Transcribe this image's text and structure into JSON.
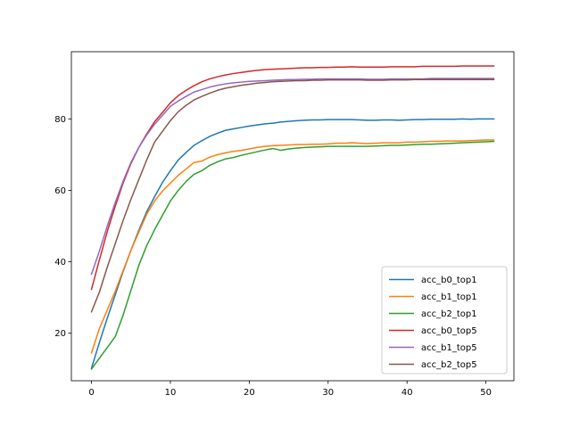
{
  "chart_data": {
    "type": "line",
    "title": "",
    "xlabel": "",
    "ylabel": "",
    "xlim": [
      -2.55,
      53.55
    ],
    "ylim": [
      6.7,
      98.8
    ],
    "xticks": [
      0,
      10,
      20,
      30,
      40,
      50
    ],
    "yticks": [
      20,
      40,
      60,
      80
    ],
    "grid": false,
    "legend_position": "lower-right",
    "x": [
      0,
      1,
      2,
      3,
      4,
      5,
      6,
      7,
      8,
      9,
      10,
      11,
      12,
      13,
      14,
      15,
      16,
      17,
      18,
      19,
      20,
      21,
      22,
      23,
      24,
      25,
      26,
      27,
      28,
      29,
      30,
      31,
      32,
      33,
      34,
      35,
      36,
      37,
      38,
      39,
      40,
      41,
      42,
      43,
      44,
      45,
      46,
      47,
      48,
      49,
      50,
      51
    ],
    "series": [
      {
        "name": "acc_b0_top1",
        "color": "#1f77b4",
        "values": [
          10.2,
          17.4,
          24.2,
          30.7,
          37.2,
          43.2,
          48.8,
          54.0,
          58.2,
          62.2,
          65.5,
          68.5,
          70.6,
          72.6,
          73.9,
          75.1,
          76.0,
          76.8,
          77.2,
          77.6,
          78.0,
          78.3,
          78.6,
          78.8,
          79.1,
          79.3,
          79.5,
          79.6,
          79.7,
          79.7,
          79.8,
          79.8,
          79.8,
          79.8,
          79.7,
          79.6,
          79.6,
          79.7,
          79.7,
          79.6,
          79.7,
          79.8,
          79.8,
          79.9,
          79.9,
          79.9,
          79.9,
          80.0,
          79.9,
          80.0,
          80.0,
          80.0
        ]
      },
      {
        "name": "acc_b1_top1",
        "color": "#ff7f0e",
        "values": [
          14.5,
          21.3,
          26.5,
          31.7,
          37.5,
          43.2,
          48.3,
          53.3,
          57.0,
          59.8,
          62.0,
          64.2,
          66.0,
          67.8,
          68.2,
          69.3,
          70.0,
          70.5,
          70.9,
          71.2,
          71.6,
          72.0,
          72.3,
          72.5,
          72.6,
          72.7,
          72.8,
          72.8,
          72.9,
          72.9,
          73.0,
          73.2,
          73.2,
          73.3,
          73.2,
          73.1,
          73.2,
          73.3,
          73.3,
          73.3,
          73.5,
          73.5,
          73.6,
          73.7,
          73.7,
          73.8,
          73.8,
          73.8,
          73.9,
          74.0,
          74.1,
          74.1
        ]
      },
      {
        "name": "acc_b2_top1",
        "color": "#2ca02c",
        "values": [
          10.0,
          13.0,
          16.0,
          19.0,
          25.0,
          32.0,
          39.0,
          44.5,
          49.0,
          53.0,
          57.0,
          60.0,
          62.5,
          64.5,
          65.5,
          67.0,
          68.0,
          68.8,
          69.2,
          69.8,
          70.3,
          70.8,
          71.3,
          71.7,
          71.2,
          71.6,
          71.8,
          72.0,
          72.1,
          72.2,
          72.3,
          72.3,
          72.3,
          72.3,
          72.3,
          72.3,
          72.4,
          72.5,
          72.6,
          72.6,
          72.7,
          72.8,
          72.9,
          72.9,
          73.0,
          73.1,
          73.2,
          73.3,
          73.4,
          73.5,
          73.6,
          73.7
        ]
      },
      {
        "name": "acc_b0_top5",
        "color": "#d62728",
        "values": [
          32.3,
          40.5,
          48.5,
          55.5,
          62.0,
          67.5,
          72.0,
          75.8,
          79.2,
          81.8,
          84.5,
          86.5,
          88.0,
          89.3,
          90.4,
          91.2,
          91.8,
          92.3,
          92.7,
          93.0,
          93.3,
          93.6,
          93.8,
          93.9,
          94.0,
          94.1,
          94.2,
          94.3,
          94.3,
          94.4,
          94.4,
          94.5,
          94.5,
          94.6,
          94.5,
          94.5,
          94.5,
          94.5,
          94.6,
          94.6,
          94.6,
          94.6,
          94.7,
          94.7,
          94.7,
          94.7,
          94.7,
          94.8,
          94.8,
          94.8,
          94.8,
          94.8
        ]
      },
      {
        "name": "acc_b1_top5",
        "color": "#9467bd",
        "values": [
          36.5,
          43.0,
          50.0,
          56.5,
          62.5,
          67.8,
          72.0,
          75.5,
          78.5,
          81.0,
          83.5,
          85.0,
          86.3,
          87.5,
          88.2,
          88.9,
          89.4,
          89.8,
          90.1,
          90.3,
          90.5,
          90.6,
          90.7,
          90.8,
          90.9,
          91.0,
          91.0,
          91.1,
          91.1,
          91.2,
          91.2,
          91.2,
          91.2,
          91.2,
          91.2,
          91.1,
          91.1,
          91.1,
          91.2,
          91.2,
          91.2,
          91.2,
          91.2,
          91.3,
          91.3,
          91.3,
          91.3,
          91.3,
          91.3,
          91.3,
          91.3,
          91.3
        ]
      },
      {
        "name": "acc_b2_top5",
        "color": "#8c564b",
        "values": [
          26.0,
          31.5,
          38.5,
          45.0,
          51.5,
          57.5,
          63.0,
          68.5,
          73.5,
          76.5,
          79.5,
          82.0,
          83.8,
          85.3,
          86.3,
          87.2,
          88.0,
          88.6,
          89.0,
          89.4,
          89.7,
          90.0,
          90.2,
          90.4,
          90.5,
          90.6,
          90.7,
          90.7,
          90.8,
          90.8,
          90.9,
          90.9,
          90.9,
          90.9,
          90.9,
          90.8,
          90.8,
          90.8,
          90.9,
          90.9,
          90.9,
          91.0,
          91.0,
          91.0,
          91.0,
          91.0,
          91.0,
          91.0,
          91.0,
          91.0,
          91.0,
          91.0
        ]
      }
    ]
  }
}
